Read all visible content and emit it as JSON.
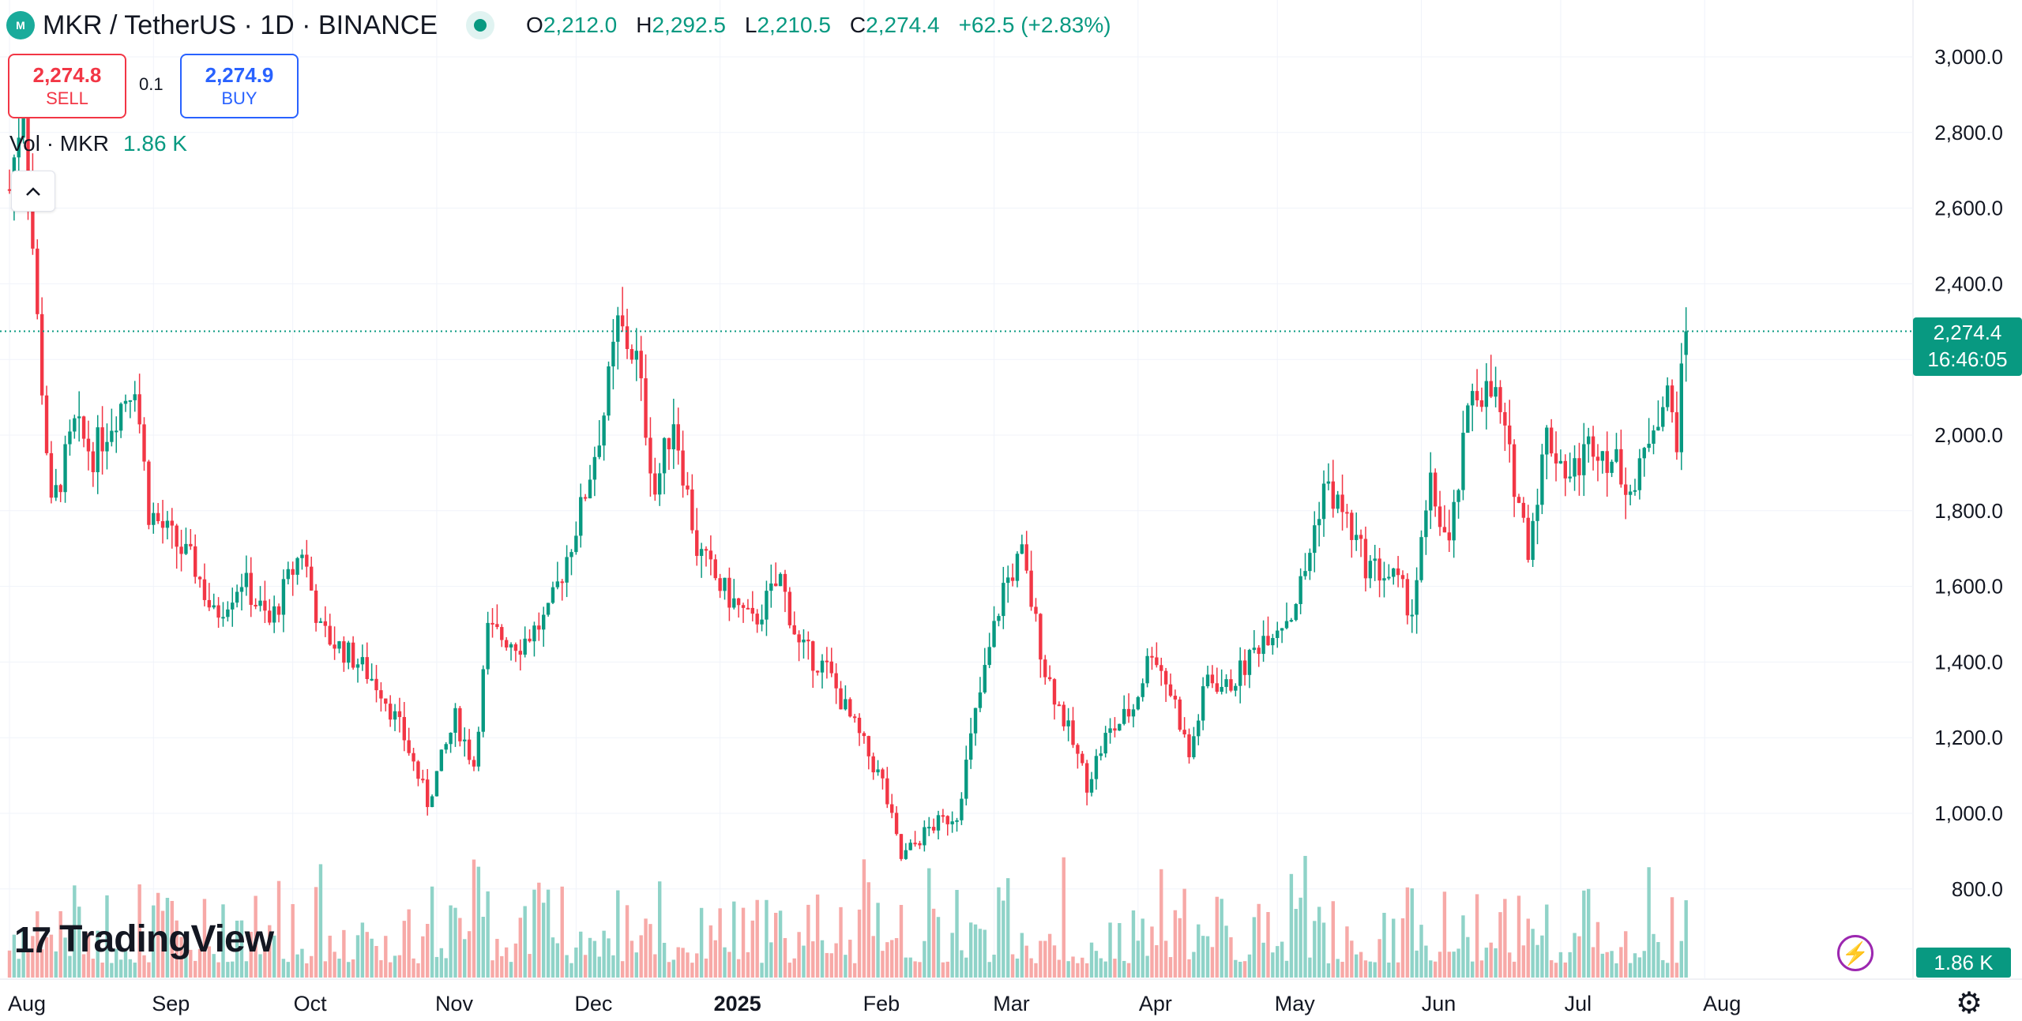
{
  "header": {
    "logo_text": "M",
    "symbol": "MKR / TetherUS · 1D · BINANCE",
    "open_label": "O",
    "open": "2,212.0",
    "high_label": "H",
    "high": "2,292.5",
    "low_label": "L",
    "low": "2,210.5",
    "close_label": "C",
    "close": "2,274.4",
    "change": "+62.5 (+2.83%)"
  },
  "trade": {
    "sell_price": "2,274.8",
    "sell_label": "SELL",
    "quantity": "0.1",
    "buy_price": "2,274.9",
    "buy_label": "BUY"
  },
  "volume_legend": {
    "label": "Vol · MKR",
    "value": "1.86 K"
  },
  "price_tag": {
    "price": "2,274.4",
    "countdown": "16:46:05"
  },
  "volume_tag": "1.86 K",
  "branding": {
    "name": "TradingView",
    "mark": "17"
  },
  "colors": {
    "up": "#089981",
    "down": "#f23645",
    "grid": "#f0f3fa",
    "vol_up": "#8fd3c8",
    "vol_down": "#f7a9a7"
  },
  "chart_data": {
    "type": "candlestick",
    "title": "MKR / TetherUS · 1D · BINANCE",
    "ylim": [
      600,
      3100
    ],
    "y_ticks": [
      "3,000.0",
      "2,800.0",
      "2,600.0",
      "2,400.0",
      "2,200.0",
      "2,000.0",
      "1,800.0",
      "1,600.0",
      "1,400.0",
      "1,200.0",
      "1,000.0",
      "800.0"
    ],
    "y_tick_values": [
      3000,
      2800,
      2600,
      2400,
      2200,
      2000,
      1800,
      1600,
      1400,
      1200,
      1000,
      800
    ],
    "x_labels": [
      "Aug",
      "Sep",
      "Oct",
      "Nov",
      "Dec",
      "2025",
      "Feb",
      "Mar",
      "Apr",
      "May",
      "Jun",
      "Jul",
      "Aug"
    ],
    "x_label_day_index": [
      0,
      31,
      61,
      92,
      122,
      153,
      184,
      212,
      243,
      273,
      304,
      334,
      365
    ],
    "last_price": 2274.4,
    "close_path_points": [
      [
        0,
        2650
      ],
      [
        3,
        2900
      ],
      [
        6,
        2300
      ],
      [
        9,
        1800
      ],
      [
        14,
        2020
      ],
      [
        18,
        1950
      ],
      [
        27,
        2150
      ],
      [
        30,
        1800
      ],
      [
        40,
        1650
      ],
      [
        44,
        1520
      ],
      [
        50,
        1620
      ],
      [
        56,
        1500
      ],
      [
        63,
        1700
      ],
      [
        67,
        1480
      ],
      [
        75,
        1400
      ],
      [
        80,
        1330
      ],
      [
        85,
        1200
      ],
      [
        90,
        1030
      ],
      [
        96,
        1250
      ],
      [
        100,
        1130
      ],
      [
        103,
        1480
      ],
      [
        110,
        1450
      ],
      [
        116,
        1520
      ],
      [
        123,
        1800
      ],
      [
        128,
        2060
      ],
      [
        131,
        2290
      ],
      [
        135,
        2200
      ],
      [
        139,
        1850
      ],
      [
        143,
        2050
      ],
      [
        148,
        1700
      ],
      [
        153,
        1600
      ],
      [
        160,
        1500
      ],
      [
        166,
        1620
      ],
      [
        170,
        1440
      ],
      [
        176,
        1380
      ],
      [
        181,
        1250
      ],
      [
        188,
        1080
      ],
      [
        192,
        880
      ],
      [
        198,
        960
      ],
      [
        204,
        1000
      ],
      [
        208,
        1260
      ],
      [
        214,
        1600
      ],
      [
        218,
        1680
      ],
      [
        223,
        1380
      ],
      [
        227,
        1250
      ],
      [
        232,
        1080
      ],
      [
        236,
        1200
      ],
      [
        242,
        1280
      ],
      [
        246,
        1440
      ],
      [
        251,
        1290
      ],
      [
        254,
        1150
      ],
      [
        258,
        1360
      ],
      [
        262,
        1330
      ],
      [
        266,
        1390
      ],
      [
        270,
        1470
      ],
      [
        276,
        1530
      ],
      [
        279,
        1640
      ],
      [
        283,
        1870
      ],
      [
        287,
        1800
      ],
      [
        292,
        1660
      ],
      [
        298,
        1620
      ],
      [
        302,
        1540
      ],
      [
        306,
        1860
      ],
      [
        310,
        1700
      ],
      [
        315,
        2130
      ],
      [
        320,
        2100
      ],
      [
        324,
        1880
      ],
      [
        327,
        1710
      ],
      [
        331,
        2000
      ],
      [
        336,
        1890
      ],
      [
        341,
        1990
      ],
      [
        346,
        1920
      ],
      [
        350,
        1850
      ],
      [
        354,
        2050
      ],
      [
        357,
        2100
      ],
      [
        359,
        2000
      ],
      [
        361,
        2274
      ]
    ],
    "volume_legend_value": "1.86 K"
  }
}
